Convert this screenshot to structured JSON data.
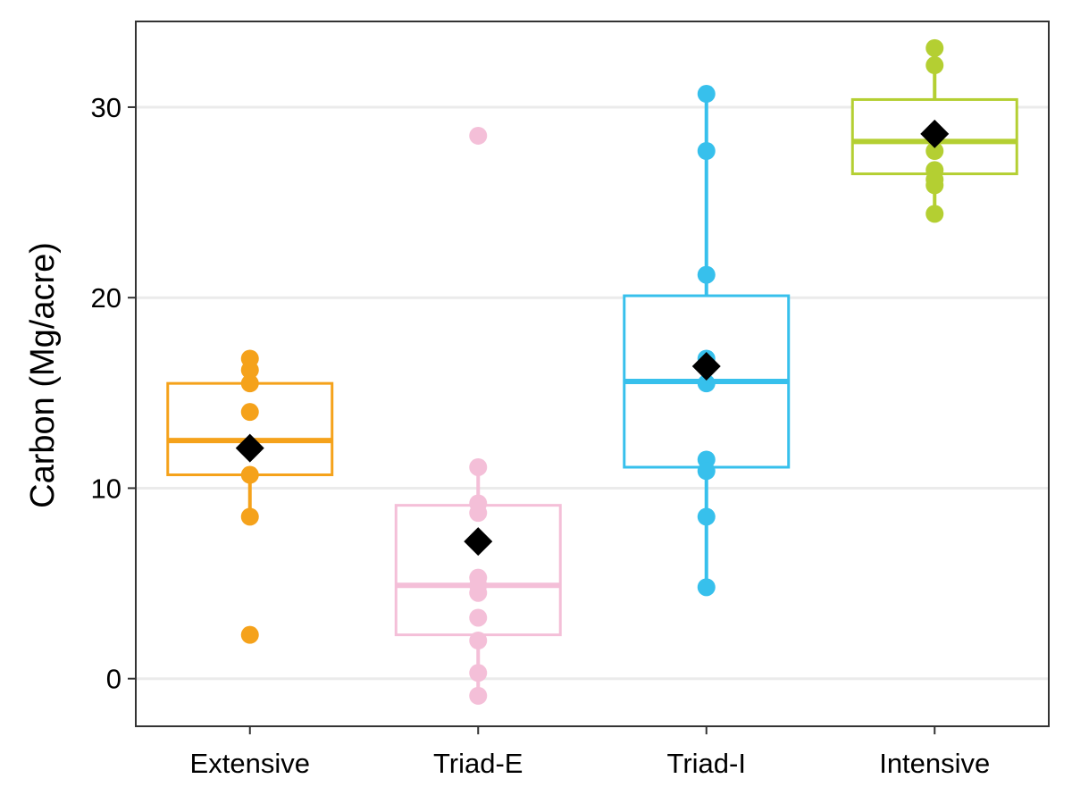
{
  "chart_data": {
    "type": "box",
    "title": "",
    "xlabel": "",
    "ylabel": "Carbon (Mg/acre)",
    "ylim": [
      -2.5,
      34.5
    ],
    "yticks": [
      0,
      10,
      20,
      30
    ],
    "grid": "horizontal major gridlines",
    "legend": "none",
    "mean_marker": "black diamond",
    "categories": [
      "Extensive",
      "Triad-E",
      "Triad-I",
      "Intensive"
    ],
    "series": [
      {
        "category": "Extensive",
        "color": "#F5A21B",
        "box": {
          "whisker_low": 8.5,
          "q1": 10.7,
          "median": 12.5,
          "q3": 15.5,
          "whisker_high": 16.8
        },
        "mean": 12.1,
        "points": [
          2.3,
          8.5,
          10.7,
          14.0,
          15.5,
          16.2,
          16.8
        ]
      },
      {
        "category": "Triad-E",
        "color": "#F4BFD8",
        "box": {
          "whisker_low": -0.9,
          "q1": 2.3,
          "median": 4.9,
          "q3": 9.1,
          "whisker_high": 11.1
        },
        "mean": 7.2,
        "points": [
          28.5,
          11.1,
          9.2,
          8.7,
          5.3,
          4.9,
          4.5,
          3.2,
          2.0,
          0.3,
          -0.9
        ]
      },
      {
        "category": "Triad-I",
        "color": "#37C0EC",
        "box": {
          "whisker_low": 4.8,
          "q1": 11.1,
          "median": 15.6,
          "q3": 20.1,
          "whisker_high": 30.7
        },
        "mean": 16.4,
        "points": [
          30.7,
          27.7,
          21.2,
          16.8,
          15.5,
          11.5,
          10.9,
          8.5,
          4.8
        ]
      },
      {
        "category": "Intensive",
        "color": "#B4CF32",
        "box": {
          "whisker_low": 24.4,
          "q1": 26.5,
          "median": 28.2,
          "q3": 30.4,
          "whisker_high": 33.1
        },
        "mean": 28.6,
        "points": [
          33.1,
          32.2,
          28.5,
          27.7,
          26.7,
          26.2,
          25.9,
          24.4
        ]
      }
    ]
  }
}
